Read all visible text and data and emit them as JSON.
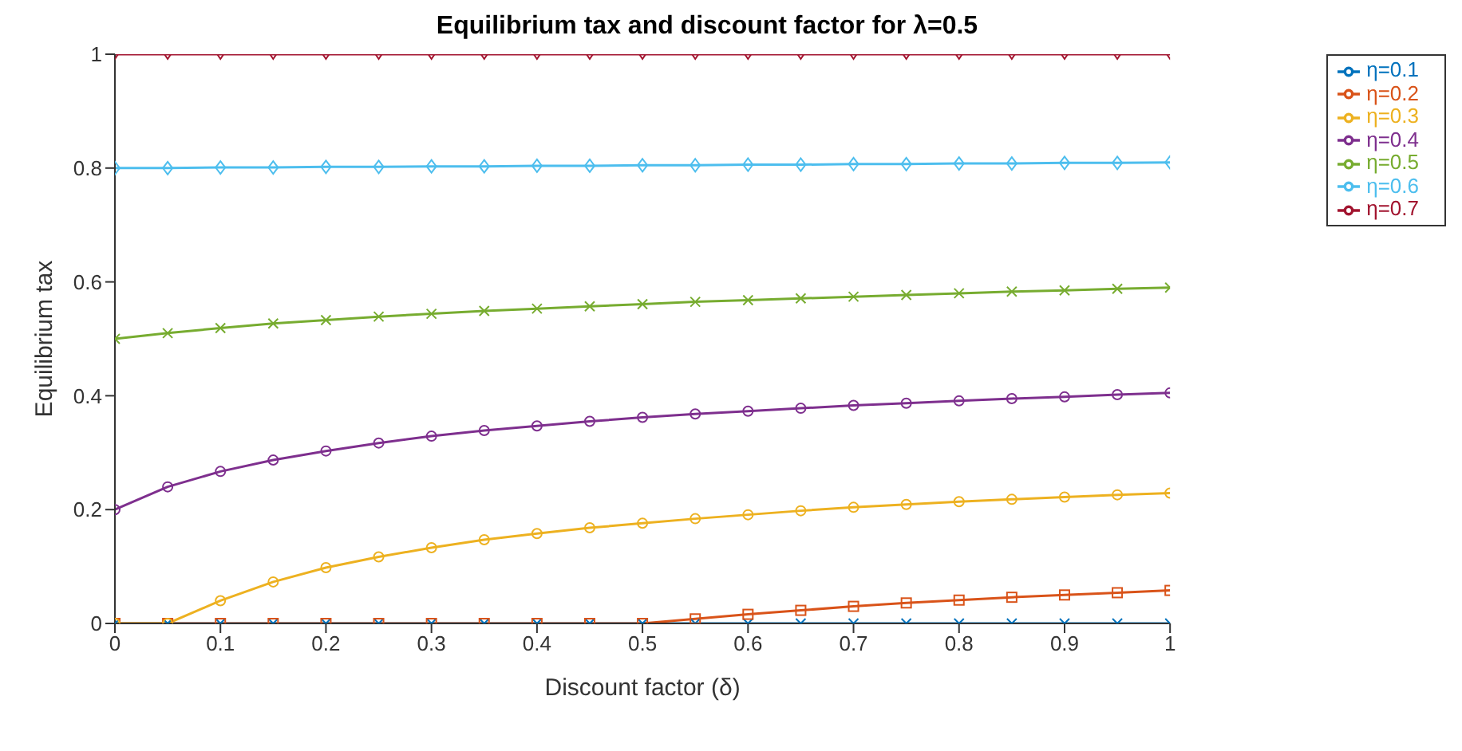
{
  "chart_data": {
    "type": "line",
    "title": "Equilibrium tax and discount factor for λ=0.5",
    "xlabel": "Discount factor (δ)",
    "ylabel": "Equilibrium tax",
    "x": [
      0,
      0.05,
      0.1,
      0.15,
      0.2,
      0.25,
      0.3,
      0.35,
      0.4,
      0.45,
      0.5,
      0.55,
      0.6,
      0.65,
      0.7,
      0.75,
      0.8,
      0.85,
      0.9,
      0.95,
      1
    ],
    "series": [
      {
        "name": "η=0.1",
        "color": "#0072bd",
        "marker": "cross",
        "values": [
          0,
          0,
          0,
          0,
          0,
          0,
          0,
          0,
          0,
          0,
          0,
          0,
          0,
          0,
          0,
          0,
          0,
          0,
          0,
          0,
          0
        ]
      },
      {
        "name": "η=0.2",
        "color": "#d95319",
        "marker": "square",
        "values": [
          0,
          0,
          0,
          0,
          0,
          0,
          0,
          0,
          0,
          0,
          0,
          0.008,
          0.016,
          0.023,
          0.03,
          0.036,
          0.041,
          0.046,
          0.05,
          0.054,
          0.058
        ]
      },
      {
        "name": "η=0.3",
        "color": "#edb120",
        "marker": "circle",
        "values": [
          0,
          0,
          0.04,
          0.073,
          0.098,
          0.117,
          0.133,
          0.147,
          0.158,
          0.168,
          0.176,
          0.184,
          0.191,
          0.198,
          0.204,
          0.209,
          0.214,
          0.218,
          0.222,
          0.226,
          0.229
        ]
      },
      {
        "name": "η=0.4",
        "color": "#7e2f8e",
        "marker": "circle",
        "values": [
          0.2,
          0.24,
          0.267,
          0.287,
          0.303,
          0.317,
          0.329,
          0.339,
          0.347,
          0.355,
          0.362,
          0.368,
          0.373,
          0.378,
          0.383,
          0.387,
          0.391,
          0.395,
          0.398,
          0.402,
          0.405
        ]
      },
      {
        "name": "η=0.5",
        "color": "#77ac30",
        "marker": "cross",
        "values": [
          0.5,
          0.51,
          0.519,
          0.527,
          0.533,
          0.539,
          0.544,
          0.549,
          0.553,
          0.557,
          0.561,
          0.565,
          0.568,
          0.571,
          0.574,
          0.577,
          0.58,
          0.583,
          0.585,
          0.588,
          0.59
        ]
      },
      {
        "name": "η=0.6",
        "color": "#4dbeee",
        "marker": "diamond",
        "values": [
          0.8,
          0.8,
          0.801,
          0.801,
          0.802,
          0.802,
          0.803,
          0.803,
          0.804,
          0.804,
          0.805,
          0.805,
          0.806,
          0.806,
          0.807,
          0.807,
          0.808,
          0.808,
          0.809,
          0.809,
          0.81
        ]
      },
      {
        "name": "η=0.7",
        "color": "#a2142f",
        "marker": "triangle",
        "values": [
          1,
          1,
          1,
          1,
          1,
          1,
          1,
          1,
          1,
          1,
          1,
          1,
          1,
          1,
          1,
          1,
          1,
          1,
          1,
          1,
          1
        ]
      }
    ],
    "xlim": [
      0,
      1
    ],
    "xticks": [
      0,
      0.1,
      0.2,
      0.3,
      0.4,
      0.5,
      0.6,
      0.7,
      0.8,
      0.9,
      1
    ],
    "ylim": [
      0,
      1
    ],
    "yticks": [
      0,
      0.2,
      0.4,
      0.6,
      0.8,
      1
    ],
    "grid": false,
    "legend": "top right",
    "line_style": "solid"
  }
}
